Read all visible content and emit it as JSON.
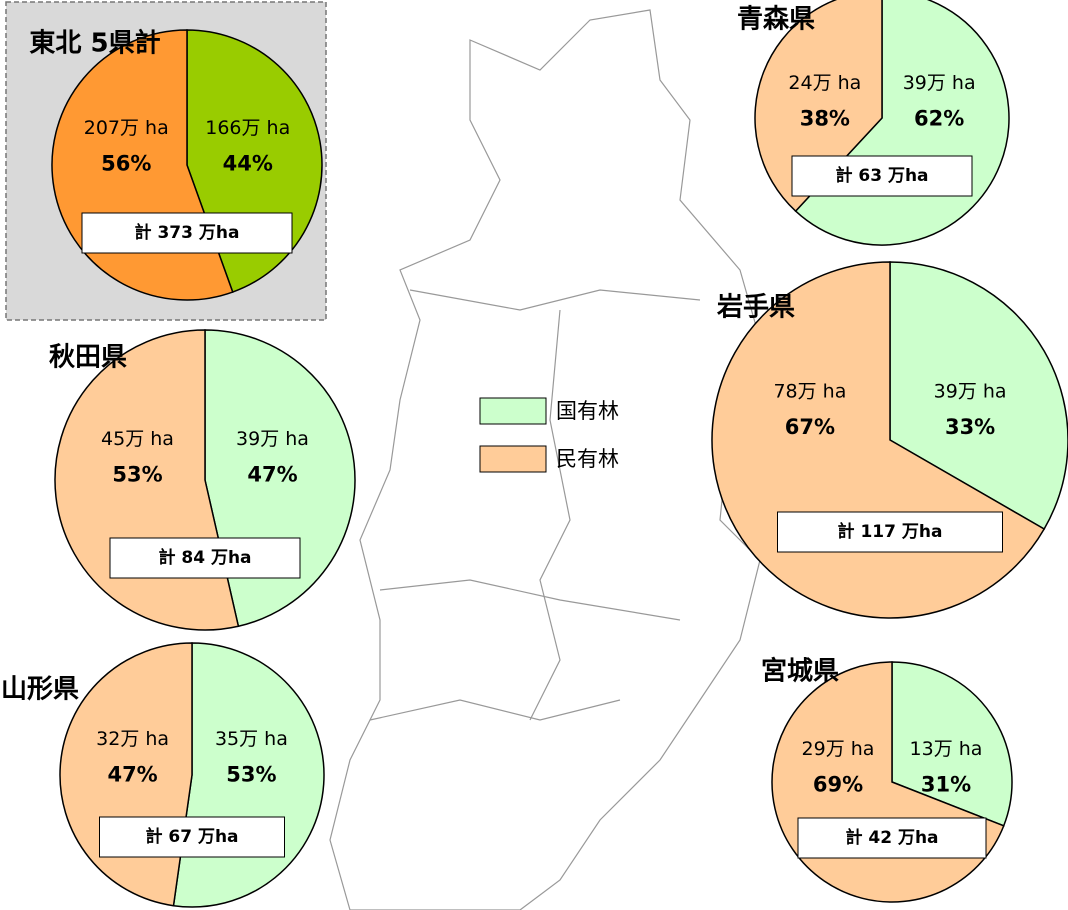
{
  "chart_data": [
    {
      "type": "pie",
      "title": "東北 5県計",
      "categories": [
        "国有林",
        "民有林"
      ],
      "values": [
        166,
        207
      ],
      "value_labels": [
        "166万 ha",
        "207万 ha"
      ],
      "percentages": [
        44,
        56
      ],
      "percentage_labels": [
        "44%",
        "56%"
      ],
      "total_label": "計 373 万ha",
      "colors": [
        "#99cc00",
        "#ff9933"
      ]
    },
    {
      "type": "pie",
      "title": "青森県",
      "categories": [
        "国有林",
        "民有林"
      ],
      "values": [
        39,
        24
      ],
      "value_labels": [
        "39万 ha",
        "24万 ha"
      ],
      "percentages": [
        62,
        38
      ],
      "percentage_labels": [
        "62%",
        "38%"
      ],
      "total_label": "計 63 万ha",
      "colors": [
        "#ccffcc",
        "#ffcc99"
      ]
    },
    {
      "type": "pie",
      "title": "岩手県",
      "categories": [
        "国有林",
        "民有林"
      ],
      "values": [
        39,
        78
      ],
      "value_labels": [
        "39万 ha",
        "78万 ha"
      ],
      "percentages": [
        33,
        67
      ],
      "percentage_labels": [
        "33%",
        "67%"
      ],
      "total_label": "計 117 万ha",
      "colors": [
        "#ccffcc",
        "#ffcc99"
      ]
    },
    {
      "type": "pie",
      "title": "秋田県",
      "categories": [
        "国有林",
        "民有林"
      ],
      "values": [
        39,
        45
      ],
      "value_labels": [
        "39万 ha",
        "45万 ha"
      ],
      "percentages": [
        47,
        53
      ],
      "percentage_labels": [
        "47%",
        "53%"
      ],
      "total_label": "計 84 万ha",
      "colors": [
        "#ccffcc",
        "#ffcc99"
      ]
    },
    {
      "type": "pie",
      "title": "山形県",
      "categories": [
        "国有林",
        "民有林"
      ],
      "values": [
        35,
        32
      ],
      "value_labels": [
        "35万 ha",
        "32万 ha"
      ],
      "percentages": [
        53,
        47
      ],
      "percentage_labels": [
        "53%",
        "47%"
      ],
      "total_label": "計 67 万ha",
      "colors": [
        "#ccffcc",
        "#ffcc99"
      ]
    },
    {
      "type": "pie",
      "title": "宮城県",
      "categories": [
        "国有林",
        "民有林"
      ],
      "values": [
        13,
        29
      ],
      "value_labels": [
        "13万 ha",
        "29万 ha"
      ],
      "percentages": [
        31,
        69
      ],
      "percentage_labels": [
        "31%",
        "69%"
      ],
      "total_label": "計 42 万ha",
      "colors": [
        "#ccffcc",
        "#ffcc99"
      ]
    }
  ]
}
